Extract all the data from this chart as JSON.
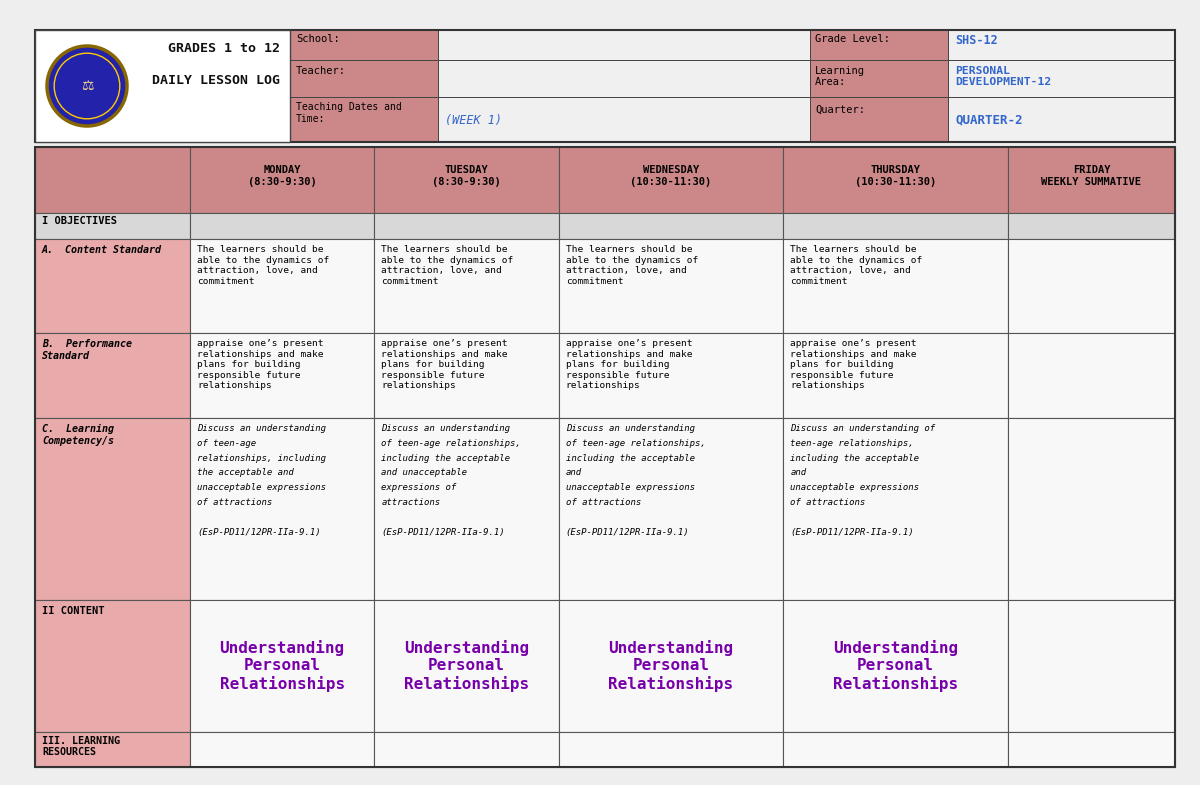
{
  "bg_color": "#eeeeee",
  "header_pink": "#cc8888",
  "cell_light_pink": "#e8aaaa",
  "cell_light_gray": "#d8d8d8",
  "cell_white": "#f8f8f8",
  "blue_text": "#3366cc",
  "purple_text": "#7700aa",
  "black_text": "#111111",
  "title1": "GRADES 1 to 12",
  "title2": "DAILY LESSON LOG",
  "school_label": "School:",
  "teacher_label": "Teacher:",
  "dates_label": "Teaching Dates and\nTime:",
  "week_val": "(WEEK 1)",
  "grade_level_label": "Grade Level:",
  "grade_level_val": "SHS-12",
  "learning_area_label": "Learning\nArea:",
  "learning_area_val": "PERSONAL\nDEVELOPMENT-12",
  "quarter_label": "Quarter:",
  "quarter_val": "QUARTER-2",
  "col_headers": [
    "MONDAY\n(8:30-9:30)",
    "TUESDAY\n(8:30-9:30)",
    "WEDNESDAY\n(10:30-11:30)",
    "THURSDAY\n(10:30-11:30)",
    "FRIDAY\nWEEKLY SUMMATIVE"
  ],
  "objectives_label": "I OBJECTIVES",
  "content_std_label": "A.  Content Standard",
  "content_std_text": "The learners should be\nable to the dynamics of\nattraction, love, and\ncommitment",
  "perf_std_label": "B.  Performance\nStandard",
  "perf_std_text": "appraise one’s present\nrelationships and make\nplans for building\nresponsible future\nrelationships",
  "learning_comp_label": "C.  Learning\nCompetency/s",
  "learning_comp_mon": "Discuss an understanding\nof teen-age\nrelationships, including\nthe acceptable and\nunacceptable expressions\nof attractions\n\n(EsP-PD11/12PR-IIa-9.1)",
  "learning_comp_tue": "Discuss an understanding\nof teen-age relationships,\nincluding the acceptable\nand unacceptable\nexpressions of\nattractions\n\n(EsP-PD11/12PR-IIa-9.1)",
  "learning_comp_wed": "Discuss an understanding\nof teen-age relationships,\nincluding the acceptable\nand\nunacceptable expressions\nof attractions\n\n(EsP-PD11/12PR-IIa-9.1)",
  "learning_comp_thu": "Discuss an understanding of\nteen-age relationships,\nincluding the acceptable\nand\nunacceptable expressions\nof attractions\n\n(EsP-PD11/12PR-IIa-9.1)",
  "content_label": "II CONTENT",
  "content_value": "Understanding\nPersonal\nRelationships",
  "learning_resources_label": "III. LEARNING\nRESOURCES"
}
